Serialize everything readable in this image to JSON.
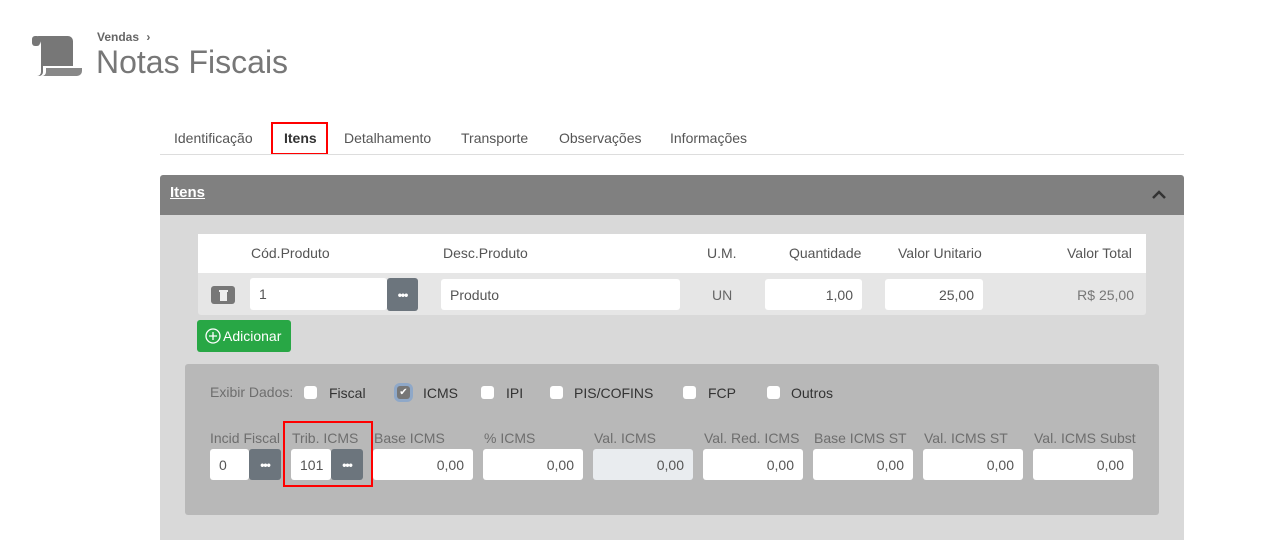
{
  "breadcrumb": {
    "parent": "Vendas",
    "separator": "›"
  },
  "page_title": "Notas Fiscais",
  "tabs": [
    "Identificação",
    "Itens",
    "Detalhamento",
    "Transporte",
    "Observações",
    "Informações"
  ],
  "active_tab": "Itens",
  "panel": {
    "title": "Itens"
  },
  "items_table": {
    "headers": {
      "cod": "Cód.Produto",
      "desc": "Desc.Produto",
      "um": "U.M.",
      "qtd": "Quantidade",
      "valor_unit": "Valor Unitario",
      "valor_total": "Valor Total"
    },
    "rows": [
      {
        "cod": "1",
        "desc": "Produto",
        "um": "UN",
        "qtd": "1,00",
        "valor_unit": "25,00",
        "valor_total": "R$ 25,00"
      }
    ]
  },
  "add_button": "Adicionar",
  "exibir": {
    "label": "Exibir Dados:",
    "options": [
      {
        "label": "Fiscal",
        "checked": false
      },
      {
        "label": "ICMS",
        "checked": true
      },
      {
        "label": "IPI",
        "checked": false
      },
      {
        "label": "PIS/COFINS",
        "checked": false
      },
      {
        "label": "FCP",
        "checked": false
      },
      {
        "label": "Outros",
        "checked": false
      }
    ]
  },
  "icms_fields": {
    "incid_fiscal": {
      "label": "Incid Fiscal",
      "value": "0"
    },
    "trib_icms": {
      "label": "Trib. ICMS",
      "value": "101"
    },
    "base_icms": {
      "label": "Base ICMS",
      "value": "0,00"
    },
    "pct_icms": {
      "label": "% ICMS",
      "value": "0,00"
    },
    "val_icms": {
      "label": "Val. ICMS",
      "value": "0,00"
    },
    "val_red_icms": {
      "label": "Val. Red. ICMS",
      "value": "0,00"
    },
    "base_icms_st": {
      "label": "Base ICMS ST",
      "value": "0,00"
    },
    "val_icms_st": {
      "label": "Val. ICMS ST",
      "value": "0,00"
    },
    "val_icms_subst": {
      "label": "Val. ICMS Subst",
      "value": "0,00"
    }
  },
  "ellipsis": "•••",
  "colors": {
    "header": "#808080",
    "green": "#28a745",
    "highlight": "#ff0000",
    "button": "#6c757d"
  }
}
